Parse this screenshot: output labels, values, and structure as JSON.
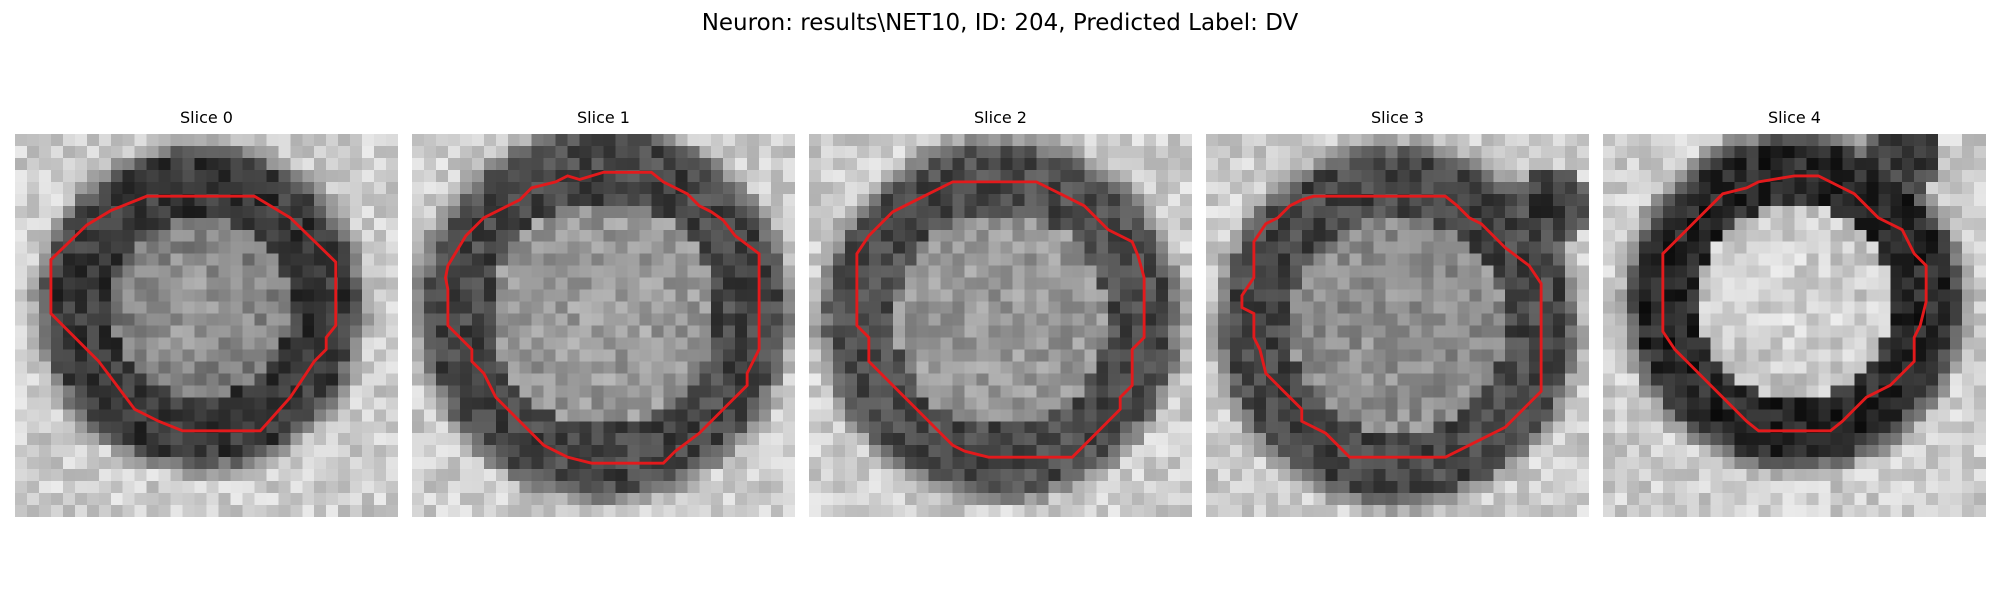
{
  "figure": {
    "title": "Neuron: results\\NET10, ID: 204, Predicted Label: DV",
    "outline_color": "#e31a1c",
    "panels": [
      {
        "title": "Slice 0",
        "seed": 11
      },
      {
        "title": "Slice 1",
        "seed": 23
      },
      {
        "title": "Slice 2",
        "seed": 37
      },
      {
        "title": "Slice 3",
        "seed": 53
      },
      {
        "title": "Slice 4",
        "seed": 71
      }
    ]
  }
}
